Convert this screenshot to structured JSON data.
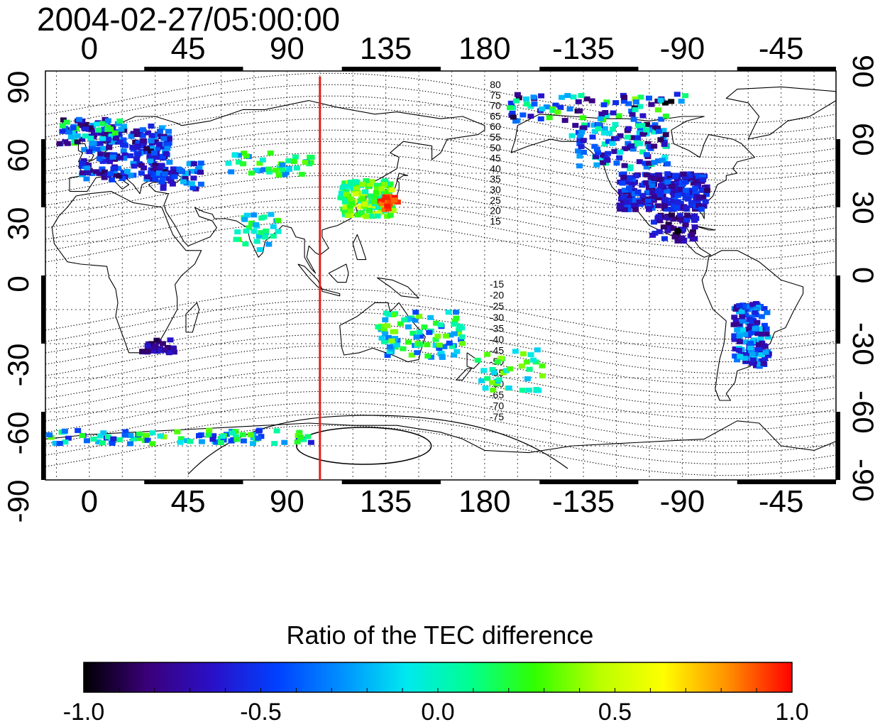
{
  "timestamp": "2004-02-27/05:00:00",
  "axes": {
    "top_lon_labels": [
      "0",
      "45",
      "90",
      "135",
      "180",
      "-135",
      "-90",
      "-45"
    ],
    "bottom_lon_labels": [
      "0",
      "45",
      "90",
      "135",
      "180",
      "-135",
      "-90",
      "-45"
    ],
    "left_lat_labels": [
      "90",
      "60",
      "30",
      "0",
      "-30",
      "-60",
      "-90"
    ],
    "right_lat_labels": [
      "90",
      "60",
      "30",
      "0",
      "-30",
      "-60",
      "-90"
    ]
  },
  "map": {
    "lon_range": [
      -20,
      340
    ],
    "lat_range": [
      -90,
      90
    ],
    "meridian_line_lon": 105,
    "meridian_line_color": "#e0201a",
    "magnetic_latitude_labels_north": [
      "80",
      "75",
      "70",
      "65",
      "60",
      "55",
      "50",
      "45",
      "40",
      "35",
      "30",
      "25",
      "20",
      "15"
    ],
    "magnetic_latitude_labels_south": [
      "-15",
      "-20",
      "-25",
      "-30",
      "-35",
      "-40",
      "-45",
      "-50",
      "-55",
      "-60",
      "-65",
      "-70",
      "-75"
    ]
  },
  "colorbar": {
    "title": "Ratio of the TEC difference",
    "ticks": [
      "-1.0",
      "-0.5",
      "0.0",
      "0.5",
      "1.0"
    ],
    "range": [
      -1.0,
      1.0
    ],
    "colors": [
      "#000000",
      "#3a007a",
      "#2a10c8",
      "#0040ff",
      "#0090ff",
      "#00e8f0",
      "#00ff90",
      "#30ff00",
      "#b8ff00",
      "#ffff00",
      "#ff9000",
      "#ff0000"
    ]
  }
}
